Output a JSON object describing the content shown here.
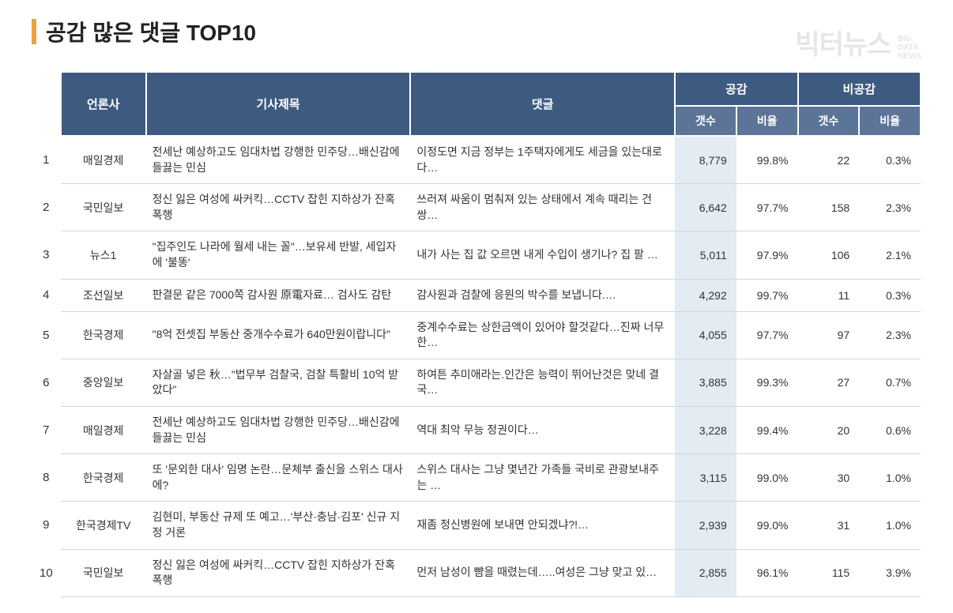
{
  "title": "공감 많은 댓글 TOP10",
  "watermark": {
    "main": "빅터뉴스",
    "sub1": "BIG",
    "sub2": "DATA",
    "sub3": "NEWS"
  },
  "headers": {
    "press": "언론사",
    "article": "기사제목",
    "comment": "댓글",
    "like_group": "공감",
    "dislike_group": "비공감",
    "count": "갯수",
    "ratio": "비율"
  },
  "rows": [
    {
      "rank": "1",
      "press": "매일경제",
      "title": "전세난 예상하고도 임대차법 강행한 민주당…배신감에 들끓는 민심",
      "comment": "이정도면 지금 정부는 1주택자에게도 세금을 있는대로 다…",
      "like_count": "8,779",
      "like_ratio": "99.8%",
      "dislike_count": "22",
      "dislike_ratio": "0.3%"
    },
    {
      "rank": "2",
      "press": "국민일보",
      "title": "정신 잃은 여성에 싸커킥…CCTV 잡힌 지하상가 잔혹 폭행",
      "comment": "쓰러져 싸움이 멈춰져 있는 상태에서 계속 때리는 건 쌍…",
      "like_count": "6,642",
      "like_ratio": "97.7%",
      "dislike_count": "158",
      "dislike_ratio": "2.3%"
    },
    {
      "rank": "3",
      "press": "뉴스1",
      "title": "\"집주인도 나라에 월세 내는 꼴\"…보유세 반발, 세입자에 '불똥'",
      "comment": "내가 사는 집 값 오르면 내게 수입이 생기나? 집 팔 …",
      "like_count": "5,011",
      "like_ratio": "97.9%",
      "dislike_count": "106",
      "dislike_ratio": "2.1%"
    },
    {
      "rank": "4",
      "press": "조선일보",
      "title": "판결문 같은 7000쪽 감사원 原電자료… 검사도 감탄",
      "comment": "감사원과 검찰에 응원의 박수를 보냅니다.…",
      "like_count": "4,292",
      "like_ratio": "99.7%",
      "dislike_count": "11",
      "dislike_ratio": "0.3%"
    },
    {
      "rank": "5",
      "press": "한국경제",
      "title": "\"8억 전셋집 부동산 중개수수료가 640만원이랍니다\"",
      "comment": "중계수수료는 상한금액이 있어야 할것같다…진짜 너무한…",
      "like_count": "4,055",
      "like_ratio": "97.7%",
      "dislike_count": "97",
      "dislike_ratio": "2.3%"
    },
    {
      "rank": "6",
      "press": "중앙일보",
      "title": "자살골 넣은 秋…\"법무부 검찰국, 검찰 특활비 10억 받았다\"",
      "comment": "하여튼 추미애라는.인간은 능력이 뛰어난것은 맞네 결국…",
      "like_count": "3,885",
      "like_ratio": "99.3%",
      "dislike_count": "27",
      "dislike_ratio": "0.7%"
    },
    {
      "rank": "7",
      "press": "매일경제",
      "title": "전세난 예상하고도 임대차법 강행한 민주당…배신감에 들끓는 민심",
      "comment": "역대 최악 무능 정권이다…",
      "like_count": "3,228",
      "like_ratio": "99.4%",
      "dislike_count": "20",
      "dislike_ratio": "0.6%"
    },
    {
      "rank": "8",
      "press": "한국경제",
      "title": "또 '문외한 대사' 임명 논란…문체부 출신을 스위스 대사에?",
      "comment": "스위스 대사는 그냥 몇년간 가족들 국비로 관광보내주는 …",
      "like_count": "3,115",
      "like_ratio": "99.0%",
      "dislike_count": "30",
      "dislike_ratio": "1.0%"
    },
    {
      "rank": "9",
      "press": "한국경제TV",
      "title": "김현미, 부동산 규제 또 예고…'부산·충남·김포' 신규 지정 거론",
      "comment": "재좀 정신병원에 보내면 안되겠냐?!…",
      "like_count": "2,939",
      "like_ratio": "99.0%",
      "dislike_count": "31",
      "dislike_ratio": "1.0%"
    },
    {
      "rank": "10",
      "press": "국민일보",
      "title": "정신 잃은 여성에 싸커킥…CCTV 잡힌 지하상가 잔혹 폭행",
      "comment": "먼저 남성이 뺨을 때렸는데…..여성은 그냥 맞고 있…",
      "like_count": "2,855",
      "like_ratio": "96.1%",
      "dislike_count": "115",
      "dislike_ratio": "3.9%"
    }
  ],
  "colors": {
    "accent": "#e8a33d",
    "header_bg": "#3d5a80",
    "subheader_bg": "#5b7497",
    "like_highlight": "#e3ebf3",
    "row_border": "#d6d6d6"
  }
}
